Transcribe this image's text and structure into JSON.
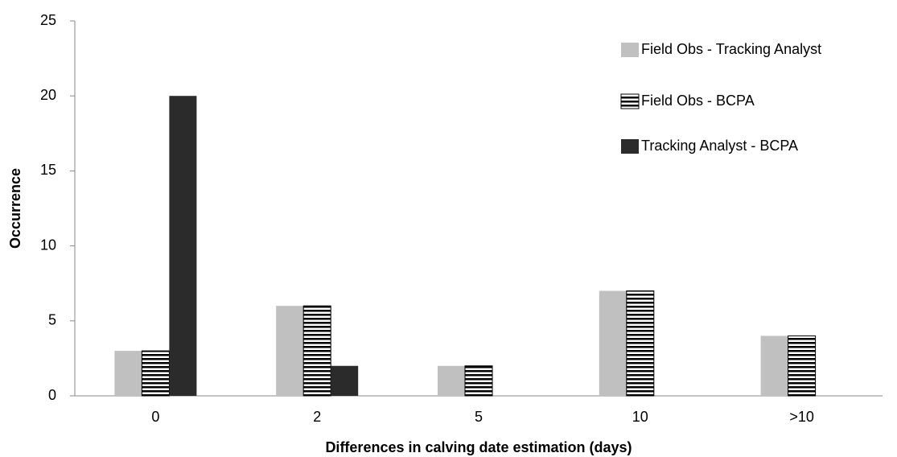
{
  "chart_data": {
    "type": "bar",
    "x_label": "Differences in calving date estimation (days)",
    "y_label": "Occurrence",
    "categories": [
      "0",
      "2",
      "5",
      "10",
      ">10"
    ],
    "series": [
      {
        "name": "Field Obs - Tracking Analyst",
        "color": "#c0c0c0",
        "values": [
          3,
          6,
          2,
          7,
          4
        ]
      },
      {
        "name": "Field Obs - BCPA",
        "color": "#000000",
        "pattern": "horizontal-stripes",
        "values": [
          3,
          6,
          2,
          7,
          4
        ]
      },
      {
        "name": "Tracking Analyst - BCPA",
        "color": "#2b2b2b",
        "values": [
          20,
          2,
          0,
          0,
          0
        ]
      }
    ],
    "ylim": [
      0,
      25
    ],
    "yticks": [
      0,
      5,
      10,
      15,
      20,
      25
    ],
    "grid": false,
    "legend": "top-right"
  }
}
